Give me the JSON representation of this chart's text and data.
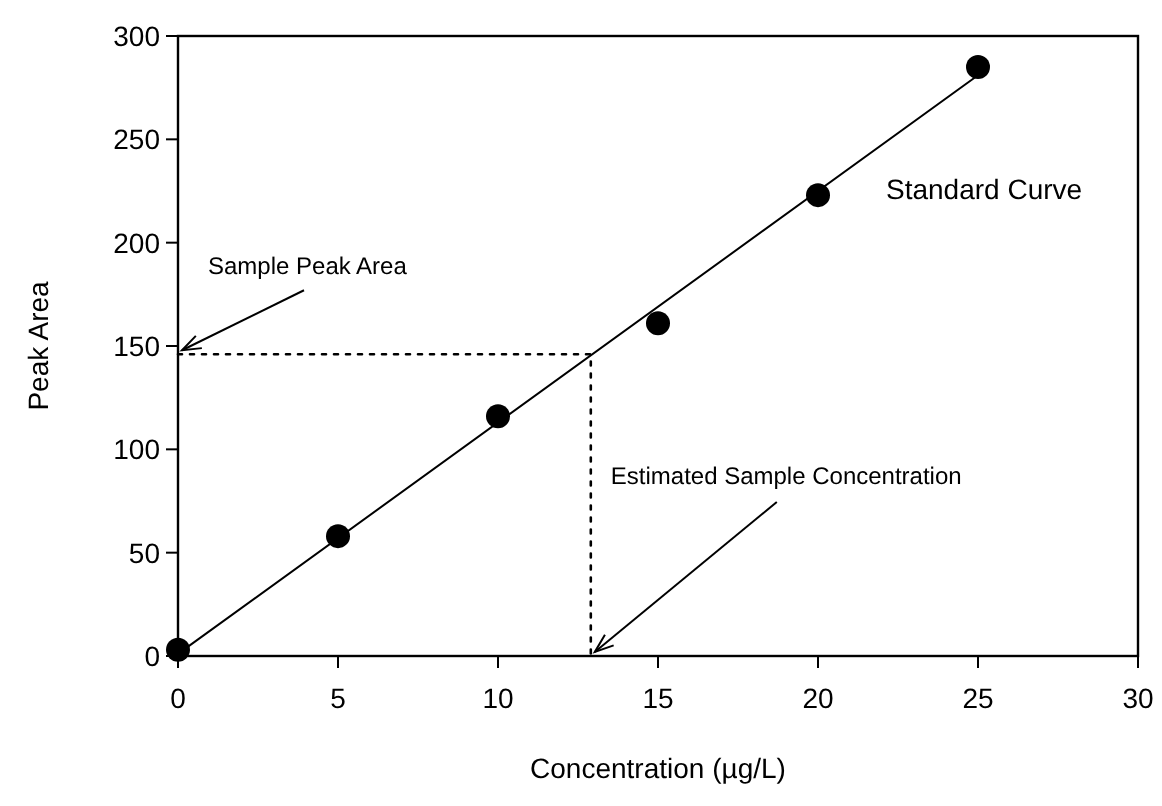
{
  "chart_data": {
    "type": "scatter",
    "xlabel": "Concentration (µg/L)",
    "ylabel": "Peak Area",
    "x": [
      0,
      5,
      10,
      15,
      20,
      25
    ],
    "xlim": [
      0,
      30
    ],
    "xticks": [
      0,
      5,
      10,
      15,
      20,
      25,
      30
    ],
    "ylim": [
      0,
      300
    ],
    "yticks": [
      0,
      50,
      100,
      150,
      200,
      250,
      300
    ],
    "grid": false,
    "series": [
      {
        "color": "#000000",
        "marker": "circle",
        "values": [
          3,
          58,
          116,
          161,
          223,
          285
        ]
      },
      {
        "type": "line",
        "name": "Standard Curve",
        "color": "#000000",
        "x": [
          0,
          25
        ],
        "values": [
          1,
          281
        ],
        "line_style": "solid",
        "marker": "none"
      },
      {
        "type": "line",
        "color": "#000000",
        "x": [
          0,
          12.9,
          12.9
        ],
        "values": [
          146,
          146,
          0
        ],
        "line_style": "dotted",
        "marker": "none"
      }
    ],
    "annotations": [
      {
        "text": "Sample Peak Area",
        "x": 0,
        "y": 146
      },
      {
        "text": "Estimated Sample Concentration",
        "x": 12.9,
        "y": 0
      }
    ]
  }
}
